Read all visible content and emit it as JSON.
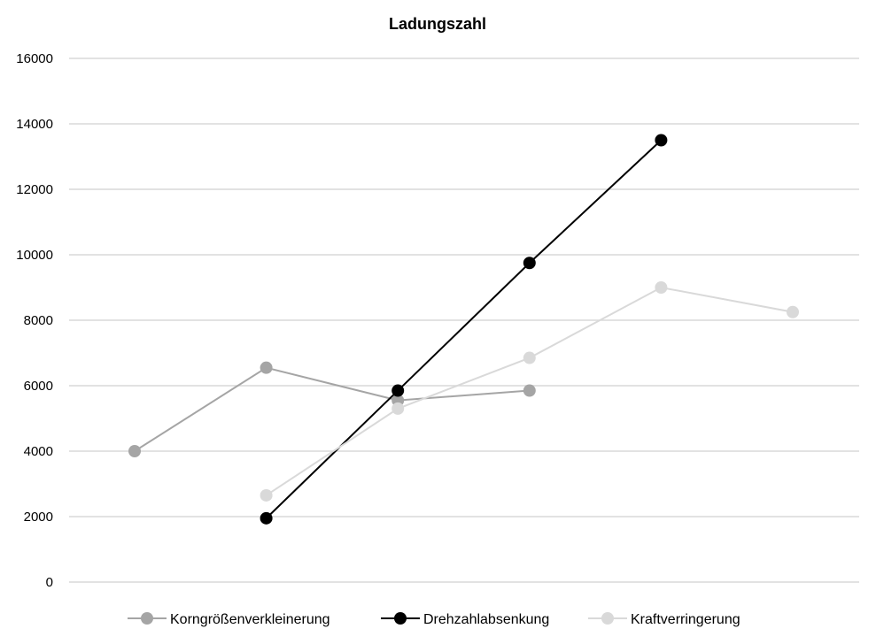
{
  "chart_data": {
    "type": "line",
    "title": "Ladungszahl",
    "xlabel": "",
    "ylabel": "",
    "ylim": [
      0,
      16000
    ],
    "yticks": [
      0,
      2000,
      4000,
      6000,
      8000,
      10000,
      12000,
      14000,
      16000
    ],
    "x_positions": 6,
    "grid": true,
    "legend_position": "bottom",
    "series": [
      {
        "name": "Korngrößenverkleinerung",
        "color": "#a5a5a5",
        "points": [
          {
            "x": 1,
            "y": 4000
          },
          {
            "x": 2,
            "y": 6550
          },
          {
            "x": 3,
            "y": 5550
          },
          {
            "x": 4,
            "y": 5850
          }
        ]
      },
      {
        "name": "Drehzahlabsenkung",
        "color": "#000000",
        "points": [
          {
            "x": 2,
            "y": 1950
          },
          {
            "x": 3,
            "y": 5850
          },
          {
            "x": 4,
            "y": 9750
          },
          {
            "x": 5,
            "y": 13500
          }
        ]
      },
      {
        "name": "Kraftverringerung",
        "color": "#d9d9d9",
        "points": [
          {
            "x": 2,
            "y": 2650
          },
          {
            "x": 3,
            "y": 5300
          },
          {
            "x": 4,
            "y": 6850
          },
          {
            "x": 5,
            "y": 9000
          },
          {
            "x": 6,
            "y": 8250
          }
        ]
      }
    ]
  }
}
